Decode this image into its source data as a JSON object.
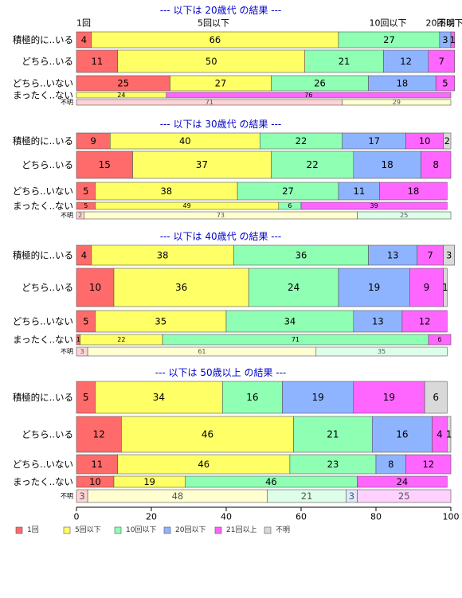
{
  "chart_data": {
    "type": "bar",
    "orientation": "horizontal",
    "stacked": true,
    "xlim": [
      0,
      100
    ],
    "x_ticks": [
      0,
      20,
      40,
      60,
      80,
      100
    ],
    "top_category_labels": [
      "1回",
      "5回以下",
      "10回以下",
      "20回以下",
      "21回以上",
      "不明"
    ],
    "legend": {
      "position": "bottom-left",
      "labels": [
        "1回",
        "5回以下",
        "10回以下",
        "20回以下",
        "21回以上",
        "不明"
      ]
    },
    "colors": [
      "#ff6b6b",
      "#ffff66",
      "#8fffb4",
      "#8fb4ff",
      "#ff66ff",
      "#d9d9d9"
    ],
    "panels": [
      {
        "title": "--- 以下は 20歳代 の結果 ---",
        "rows": [
          {
            "label": "積極的に..いる",
            "values": [
              4,
              66,
              27,
              3,
              1,
              0
            ]
          },
          {
            "label": "どちら..いる",
            "values": [
              11,
              50,
              21,
              12,
              7,
              0
            ]
          },
          {
            "label": "どちら..いない",
            "values": [
              25,
              27,
              26,
              18,
              5,
              0
            ]
          },
          {
            "label": "まったく..ない",
            "values": [
              0,
              24,
              0,
              0,
              76,
              0
            ]
          },
          {
            "label": "不明",
            "values": [
              71,
              29,
              0,
              0,
              0,
              0
            ]
          }
        ]
      },
      {
        "title": "--- 以下は 30歳代 の結果 ---",
        "rows": [
          {
            "label": "積極的に..いる",
            "values": [
              9,
              40,
              22,
              17,
              10,
              2
            ]
          },
          {
            "label": "どちら..いる",
            "values": [
              15,
              37,
              22,
              18,
              8,
              0
            ]
          },
          {
            "label": "どちら..いない",
            "values": [
              5,
              38,
              27,
              11,
              18,
              0
            ]
          },
          {
            "label": "まったく..ない",
            "values": [
              5,
              49,
              6,
              0,
              39,
              0
            ]
          },
          {
            "label": "不明",
            "values": [
              2,
              73,
              25,
              0,
              0,
              0
            ]
          }
        ]
      },
      {
        "title": "--- 以下は 40歳代 の結果 ---",
        "rows": [
          {
            "label": "積極的に..いる",
            "values": [
              4,
              38,
              36,
              13,
              7,
              3
            ]
          },
          {
            "label": "どちら..いる",
            "values": [
              10,
              36,
              24,
              19,
              9,
              1
            ]
          },
          {
            "label": "どちら..いない",
            "values": [
              5,
              35,
              34,
              13,
              12,
              0
            ]
          },
          {
            "label": "まったく..ない",
            "values": [
              1,
              22,
              71,
              0,
              6,
              0
            ]
          },
          {
            "label": "不明",
            "values": [
              3,
              61,
              35,
              0,
              0,
              0
            ]
          }
        ]
      },
      {
        "title": "--- 以下は 50歳以上 の結果 ---",
        "rows": [
          {
            "label": "積極的に..いる",
            "values": [
              5,
              34,
              16,
              19,
              19,
              6
            ]
          },
          {
            "label": "どちら..いる",
            "values": [
              12,
              46,
              21,
              16,
              4,
              1
            ]
          },
          {
            "label": "どちら..いない",
            "values": [
              11,
              46,
              23,
              8,
              12,
              0
            ]
          },
          {
            "label": "まったく..ない",
            "values": [
              10,
              19,
              46,
              0,
              24,
              0
            ]
          },
          {
            "label": "不明",
            "values": [
              3,
              48,
              21,
              3,
              25,
              0
            ]
          }
        ]
      }
    ]
  }
}
